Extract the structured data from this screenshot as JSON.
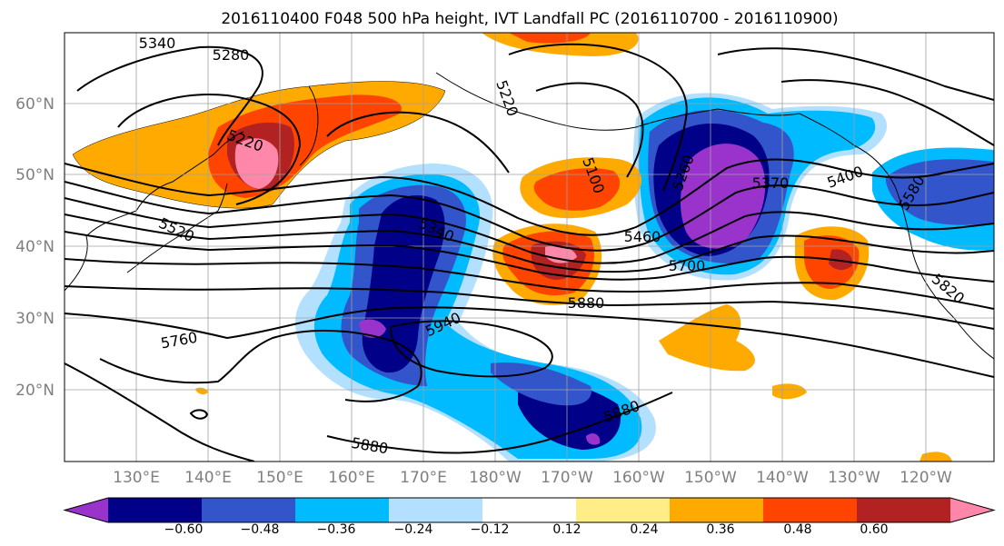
{
  "title": "2016110400 F048 500 hPa height, IVT Landfall PC (2016110700 - 2016110900)",
  "lat_labels": [
    "60°N",
    "50°N",
    "40°N",
    "30°N",
    "20°N"
  ],
  "lon_labels": [
    "130°E",
    "140°E",
    "150°E",
    "160°E",
    "170°E",
    "180°W",
    "170°W",
    "160°W",
    "150°W",
    "140°W",
    "130°W",
    "120°W"
  ],
  "contour_labels": [
    "5340",
    "5280",
    "5220",
    "5520",
    "5340",
    "5220",
    "5100",
    "5260",
    "5460",
    "5370",
    "5700",
    "5400",
    "5580",
    "5880",
    "5940",
    "5760",
    "5820",
    "5880",
    "5880"
  ],
  "colorbar": {
    "ticks": [
      "−0.60",
      "−0.48",
      "−0.36",
      "−0.24",
      "−0.12",
      "0.12",
      "0.24",
      "0.36",
      "0.48",
      "0.60"
    ],
    "colors": [
      "#9933cc",
      "#000088",
      "#3355cc",
      "#00bbff",
      "#b3e0ff",
      "#ffffff",
      "#ffee88",
      "#ffaa00",
      "#ff4400",
      "#b22222",
      "#ff88aa"
    ]
  }
}
